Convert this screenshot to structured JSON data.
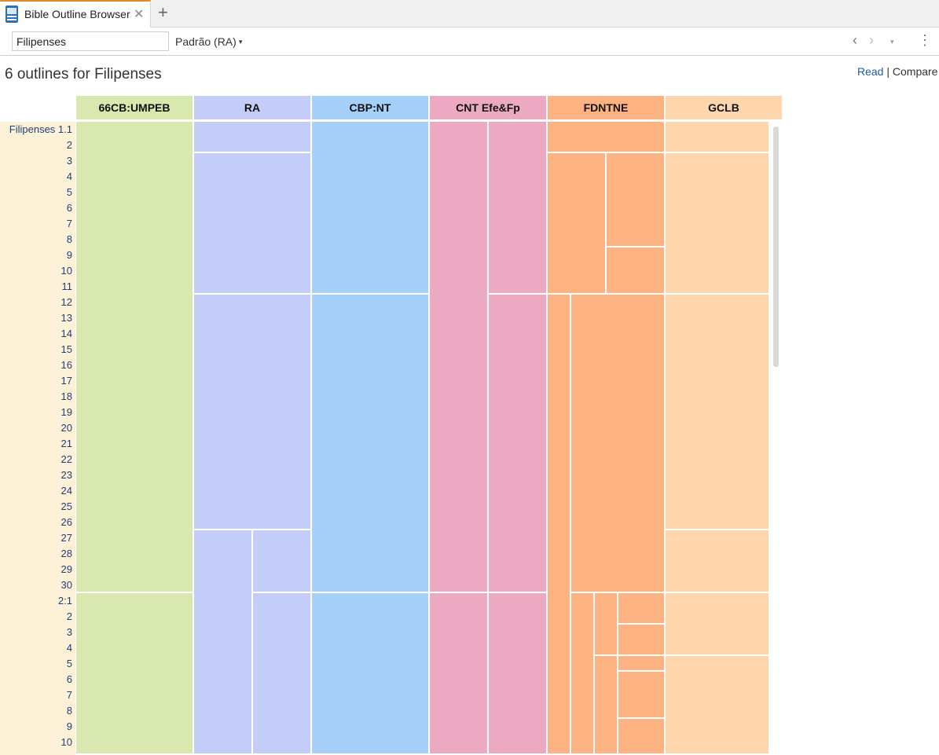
{
  "tab": {
    "title": "Bible Outline Browser",
    "close": "✕",
    "new": "+"
  },
  "toolbar": {
    "search_value": "Filipenses",
    "version": "Padrão (RA)",
    "version_caret": "▾",
    "back": "‹",
    "forward": "›",
    "dropdown": "▾",
    "menu": "⋮"
  },
  "heading": {
    "title": "6 outlines for Filipenses",
    "read": "Read",
    "separator": " | ",
    "compare": "Compare"
  },
  "columns": [
    {
      "label": "66CB:UMPEB",
      "header_color": "#d8e8ae",
      "block_color": "#d8e8ae"
    },
    {
      "label": "RA",
      "header_color": "#c3cdf7",
      "block_color": "#c3cdf7"
    },
    {
      "label": "CBP:NT",
      "header_color": "#a6cff9",
      "block_color": "#a6cff9"
    },
    {
      "label": "CNT Efe&Fp",
      "header_color": "#eca9c2",
      "block_color": "#eca9c2"
    },
    {
      "label": "FDNTNE",
      "header_color": "#fdb281",
      "block_color": "#fdb281"
    },
    {
      "label": "GCLB",
      "header_color": "#fed6ad",
      "block_color": "#fed6ad"
    }
  ],
  "verses": [
    "Filipenses 1.1",
    "2",
    "3",
    "4",
    "5",
    "6",
    "7",
    "8",
    "9",
    "10",
    "11",
    "12",
    "13",
    "14",
    "15",
    "16",
    "17",
    "18",
    "19",
    "20",
    "21",
    "22",
    "23",
    "24",
    "25",
    "26",
    "27",
    "28",
    "29",
    "30",
    "2:1",
    "2",
    "3",
    "4",
    "5",
    "6",
    "7",
    "8",
    "9",
    "10"
  ]
}
